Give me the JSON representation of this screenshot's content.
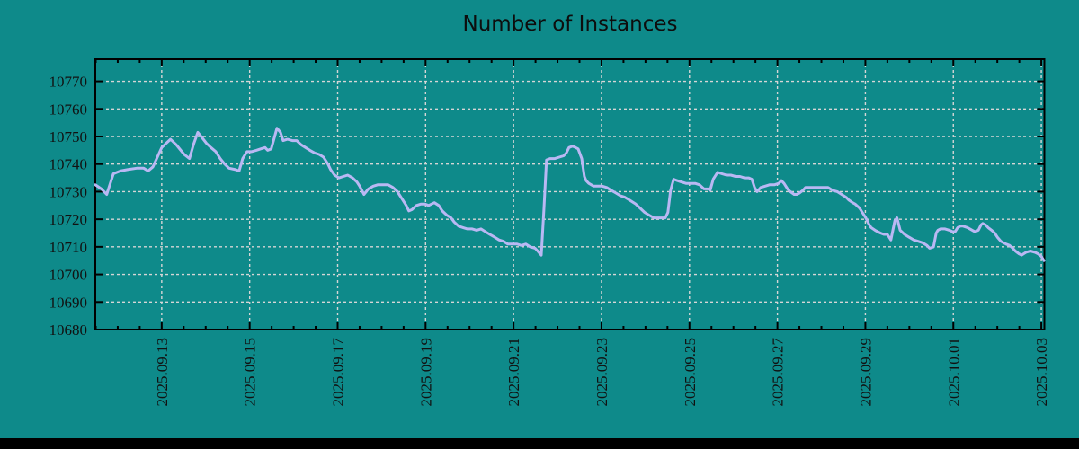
{
  "page": {
    "background_color": "#0e8a8a",
    "bottom_bar_color": "#000000"
  },
  "chart_data": {
    "type": "line",
    "title": "Number of Instances",
    "legend_position": "none",
    "grid": "dashed",
    "colors": {
      "line": "#b9b8f3",
      "grid": "#d6d6d6",
      "frame": "#000000",
      "text": "#111111"
    },
    "y_axis": {
      "range": [
        10680,
        10778
      ],
      "tick_step": 10,
      "tick_values": [
        10680,
        10690,
        10700,
        10710,
        10720,
        10730,
        10740,
        10750,
        10760,
        10770
      ],
      "tick_labels": [
        "10680",
        "10690",
        "10700",
        "10710",
        "10720",
        "10730",
        "10740",
        "10750",
        "10760",
        "10770"
      ]
    },
    "x_axis": {
      "unit": "days relative to 2025.09.13 00:00",
      "range": [
        -1.51,
        20.07
      ],
      "major_tick_step_days": 2,
      "minor_tick_step_days": 0.5,
      "label_rotation_deg": 90,
      "tick_offsets": [
        0,
        2,
        4,
        6,
        8,
        10,
        12,
        14,
        16,
        18,
        20
      ],
      "tick_labels": [
        "2025.09.13",
        "2025.09.15",
        "2025.09.17",
        "2025.09.19",
        "2025.09.21",
        "2025.09.23",
        "2025.09.25",
        "2025.09.27",
        "2025.09.29",
        "2025.10.01",
        "2025.10.03"
      ]
    },
    "points": [
      [
        -1.51,
        10732.5
      ],
      [
        -1.37,
        10731
      ],
      [
        -1.25,
        10729
      ],
      [
        -1.1,
        10736.5
      ],
      [
        -0.94,
        10737.5
      ],
      [
        -0.78,
        10738
      ],
      [
        -0.57,
        10738.5
      ],
      [
        -0.41,
        10738.5
      ],
      [
        -0.31,
        10737.5
      ],
      [
        -0.2,
        10739
      ],
      [
        -0.1,
        10742.5
      ],
      [
        0.0,
        10746
      ],
      [
        0.1,
        10747.5
      ],
      [
        0.2,
        10749
      ],
      [
        0.33,
        10747
      ],
      [
        0.51,
        10743.5
      ],
      [
        0.63,
        10742
      ],
      [
        0.73,
        10747.5
      ],
      [
        0.82,
        10751.5
      ],
      [
        0.92,
        10749.5
      ],
      [
        1.02,
        10747.5
      ],
      [
        1.12,
        10746
      ],
      [
        1.23,
        10744.5
      ],
      [
        1.33,
        10742
      ],
      [
        1.43,
        10740
      ],
      [
        1.53,
        10738.5
      ],
      [
        1.68,
        10738
      ],
      [
        1.76,
        10737.5
      ],
      [
        1.84,
        10742
      ],
      [
        1.94,
        10744.5
      ],
      [
        2.04,
        10744.5
      ],
      [
        2.15,
        10745
      ],
      [
        2.25,
        10745.5
      ],
      [
        2.35,
        10746
      ],
      [
        2.41,
        10745
      ],
      [
        2.49,
        10745.5
      ],
      [
        2.62,
        10753
      ],
      [
        2.7,
        10751.5
      ],
      [
        2.76,
        10748.5
      ],
      [
        2.86,
        10749
      ],
      [
        2.97,
        10748.5
      ],
      [
        3.07,
        10748.5
      ],
      [
        3.17,
        10747
      ],
      [
        3.27,
        10746
      ],
      [
        3.37,
        10745
      ],
      [
        3.48,
        10744
      ],
      [
        3.58,
        10743.5
      ],
      [
        3.68,
        10742.5
      ],
      [
        3.78,
        10740
      ],
      [
        3.84,
        10738
      ],
      [
        3.93,
        10736
      ],
      [
        4.03,
        10735
      ],
      [
        4.13,
        10735.5
      ],
      [
        4.23,
        10736
      ],
      [
        4.34,
        10735
      ],
      [
        4.44,
        10733.5
      ],
      [
        4.5,
        10732
      ],
      [
        4.6,
        10729
      ],
      [
        4.7,
        10731
      ],
      [
        4.81,
        10732
      ],
      [
        4.91,
        10732.5
      ],
      [
        5.01,
        10732.5
      ],
      [
        5.15,
        10732.5
      ],
      [
        5.26,
        10731.5
      ],
      [
        5.36,
        10730
      ],
      [
        5.46,
        10727.5
      ],
      [
        5.56,
        10725
      ],
      [
        5.62,
        10723
      ],
      [
        5.69,
        10723.5
      ],
      [
        5.79,
        10725
      ],
      [
        5.89,
        10725.5
      ],
      [
        5.99,
        10725.5
      ],
      [
        6.07,
        10725
      ],
      [
        6.13,
        10725.5
      ],
      [
        6.2,
        10726
      ],
      [
        6.3,
        10725
      ],
      [
        6.38,
        10723
      ],
      [
        6.48,
        10721.5
      ],
      [
        6.58,
        10720.5
      ],
      [
        6.65,
        10719
      ],
      [
        6.75,
        10717.5
      ],
      [
        6.85,
        10717
      ],
      [
        6.95,
        10716.5
      ],
      [
        7.06,
        10716.5
      ],
      [
        7.16,
        10716
      ],
      [
        7.26,
        10716.5
      ],
      [
        7.36,
        10715.5
      ],
      [
        7.46,
        10714.5
      ],
      [
        7.57,
        10713.5
      ],
      [
        7.67,
        10712.5
      ],
      [
        7.77,
        10712
      ],
      [
        7.87,
        10711
      ],
      [
        7.98,
        10711
      ],
      [
        8.08,
        10711
      ],
      [
        8.18,
        10710.5
      ],
      [
        8.28,
        10711
      ],
      [
        8.38,
        10710
      ],
      [
        8.49,
        10709.5
      ],
      [
        8.55,
        10708.5
      ],
      [
        8.63,
        10707
      ],
      [
        8.69,
        10723.5
      ],
      [
        8.75,
        10741.5
      ],
      [
        8.83,
        10742
      ],
      [
        8.94,
        10742
      ],
      [
        9.04,
        10742.5
      ],
      [
        9.14,
        10743
      ],
      [
        9.2,
        10744
      ],
      [
        9.26,
        10746
      ],
      [
        9.34,
        10746.5
      ],
      [
        9.41,
        10746
      ],
      [
        9.47,
        10745.5
      ],
      [
        9.55,
        10742
      ],
      [
        9.61,
        10735.5
      ],
      [
        9.65,
        10734
      ],
      [
        9.71,
        10733
      ],
      [
        9.82,
        10732
      ],
      [
        9.92,
        10732
      ],
      [
        10.02,
        10732
      ],
      [
        10.12,
        10731.5
      ],
      [
        10.22,
        10730.5
      ],
      [
        10.33,
        10729.5
      ],
      [
        10.43,
        10728.5
      ],
      [
        10.53,
        10728
      ],
      [
        10.63,
        10727
      ],
      [
        10.78,
        10725.5
      ],
      [
        10.88,
        10724
      ],
      [
        10.98,
        10722.5
      ],
      [
        11.08,
        10721.5
      ],
      [
        11.19,
        10720.5
      ],
      [
        11.31,
        10720.5
      ],
      [
        11.45,
        10720.5
      ],
      [
        11.51,
        10722.5
      ],
      [
        11.57,
        10730.5
      ],
      [
        11.64,
        10734.5
      ],
      [
        11.72,
        10734
      ],
      [
        11.82,
        10733.5
      ],
      [
        11.92,
        10733
      ],
      [
        12.02,
        10733
      ],
      [
        12.13,
        10733
      ],
      [
        12.23,
        10732.5
      ],
      [
        12.33,
        10731
      ],
      [
        12.43,
        10731
      ],
      [
        12.47,
        10730.5
      ],
      [
        12.54,
        10734.5
      ],
      [
        12.6,
        10736
      ],
      [
        12.64,
        10737
      ],
      [
        12.74,
        10736.5
      ],
      [
        12.84,
        10736
      ],
      [
        12.94,
        10736
      ],
      [
        13.05,
        10735.5
      ],
      [
        13.15,
        10735.5
      ],
      [
        13.25,
        10735
      ],
      [
        13.35,
        10735
      ],
      [
        13.42,
        10734.5
      ],
      [
        13.48,
        10731.5
      ],
      [
        13.54,
        10730
      ],
      [
        13.62,
        10731.5
      ],
      [
        13.72,
        10732
      ],
      [
        13.82,
        10732.5
      ],
      [
        13.93,
        10732.5
      ],
      [
        14.03,
        10733
      ],
      [
        14.09,
        10734
      ],
      [
        14.15,
        10733
      ],
      [
        14.23,
        10731
      ],
      [
        14.29,
        10730
      ],
      [
        14.38,
        10729
      ],
      [
        14.44,
        10729
      ],
      [
        14.5,
        10729.5
      ],
      [
        14.58,
        10730.5
      ],
      [
        14.64,
        10731.5
      ],
      [
        14.74,
        10731.5
      ],
      [
        14.85,
        10731.5
      ],
      [
        14.95,
        10731.5
      ],
      [
        15.05,
        10731.5
      ],
      [
        15.15,
        10731.5
      ],
      [
        15.25,
        10730.5
      ],
      [
        15.36,
        10730
      ],
      [
        15.46,
        10729
      ],
      [
        15.56,
        10728
      ],
      [
        15.62,
        10727
      ],
      [
        15.71,
        10726
      ],
      [
        15.77,
        10725.5
      ],
      [
        15.87,
        10724
      ],
      [
        15.93,
        10722.5
      ],
      [
        16.01,
        10720.5
      ],
      [
        16.07,
        10718.5
      ],
      [
        16.13,
        10717
      ],
      [
        16.22,
        10716
      ],
      [
        16.28,
        10715.5
      ],
      [
        16.34,
        10715
      ],
      [
        16.42,
        10714.5
      ],
      [
        16.5,
        10714.5
      ],
      [
        16.58,
        10712.5
      ],
      [
        16.67,
        10719.5
      ],
      [
        16.72,
        10720.5
      ],
      [
        16.79,
        10716
      ],
      [
        16.89,
        10714.5
      ],
      [
        16.99,
        10713.5
      ],
      [
        17.1,
        10712.5
      ],
      [
        17.2,
        10712
      ],
      [
        17.3,
        10711.5
      ],
      [
        17.4,
        10710.5
      ],
      [
        17.46,
        10709.5
      ],
      [
        17.55,
        10710
      ],
      [
        17.61,
        10715
      ],
      [
        17.65,
        10716
      ],
      [
        17.71,
        10716.5
      ],
      [
        17.81,
        10716.5
      ],
      [
        17.91,
        10716
      ],
      [
        17.98,
        10715.5
      ],
      [
        18.04,
        10715.5
      ],
      [
        18.1,
        10717
      ],
      [
        18.16,
        10717.5
      ],
      [
        18.22,
        10717.5
      ],
      [
        18.32,
        10717
      ],
      [
        18.43,
        10716
      ],
      [
        18.49,
        10715.5
      ],
      [
        18.57,
        10716
      ],
      [
        18.63,
        10718
      ],
      [
        18.67,
        10718.5
      ],
      [
        18.73,
        10718
      ],
      [
        18.79,
        10717
      ],
      [
        18.87,
        10716
      ],
      [
        18.94,
        10715
      ],
      [
        19.0,
        10713.5
      ],
      [
        19.08,
        10712
      ],
      [
        19.14,
        10711.5
      ],
      [
        19.2,
        10711
      ],
      [
        19.28,
        10710.5
      ],
      [
        19.35,
        10709.5
      ],
      [
        19.41,
        10708.5
      ],
      [
        19.49,
        10707.5
      ],
      [
        19.55,
        10707
      ],
      [
        19.65,
        10708
      ],
      [
        19.75,
        10708.5
      ],
      [
        19.86,
        10708
      ],
      [
        19.92,
        10707.5
      ],
      [
        20.0,
        10706.5
      ],
      [
        20.06,
        10705
      ]
    ]
  }
}
